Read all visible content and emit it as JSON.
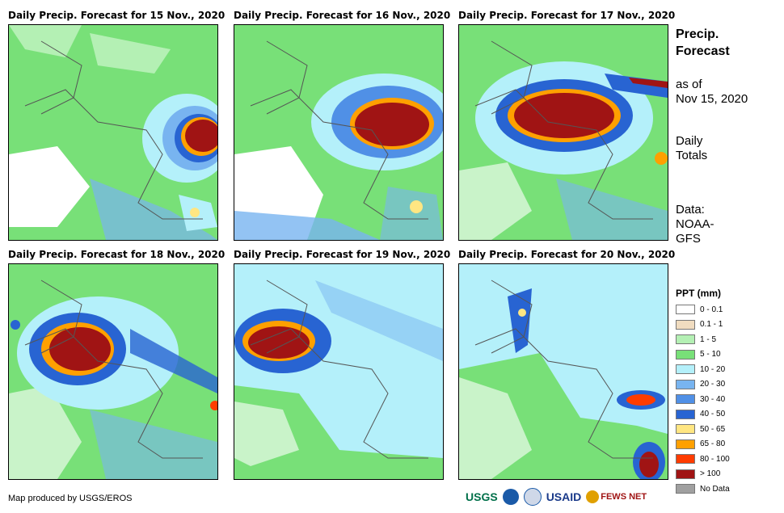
{
  "panels": [
    {
      "title": "Daily Precip. Forecast for 15 Nov., 2020"
    },
    {
      "title": "Daily Precip. Forecast for 16 Nov., 2020"
    },
    {
      "title": "Daily Precip. Forecast for 17 Nov., 2020"
    },
    {
      "title": "Daily Precip. Forecast for 18 Nov., 2020"
    },
    {
      "title": "Daily Precip. Forecast for 19 Nov., 2020"
    },
    {
      "title": "Daily Precip. Forecast for 20 Nov., 2020"
    }
  ],
  "side": {
    "title_line1": "Precip.",
    "title_line2": "Forecast",
    "asof_line1": "as of",
    "asof_line2": "Nov 15, 2020",
    "daily_line1": "Daily",
    "daily_line2": "Totals",
    "data_line1": "Data:",
    "data_line2": "NOAA-",
    "data_line3": "GFS"
  },
  "legend": {
    "title": "PPT (mm)",
    "items": [
      {
        "label": "0 - 0.1",
        "color": "#ffffff"
      },
      {
        "label": "0.1 - 1",
        "color": "#f0dcc0"
      },
      {
        "label": "1 - 5",
        "color": "#b4f0b4"
      },
      {
        "label": "5 - 10",
        "color": "#78e078"
      },
      {
        "label": "10 - 20",
        "color": "#b4f0fa"
      },
      {
        "label": "20 - 30",
        "color": "#78b4f0"
      },
      {
        "label": "30 - 40",
        "color": "#5090e6"
      },
      {
        "label": "40 - 50",
        "color": "#2864d2"
      },
      {
        "label": "50 - 65",
        "color": "#ffe682"
      },
      {
        "label": "65 - 80",
        "color": "#ffa000"
      },
      {
        "label": "80 - 100",
        "color": "#ff3c00"
      },
      {
        "label": "> 100",
        "color": "#a01414"
      },
      {
        "label": "No Data",
        "color": "#a0a0a0"
      }
    ]
  },
  "credit": "Map produced by USGS/EROS",
  "logos": {
    "usgs": "USGS",
    "usaid": "USAID",
    "fewsnet": "FEWS NET"
  }
}
